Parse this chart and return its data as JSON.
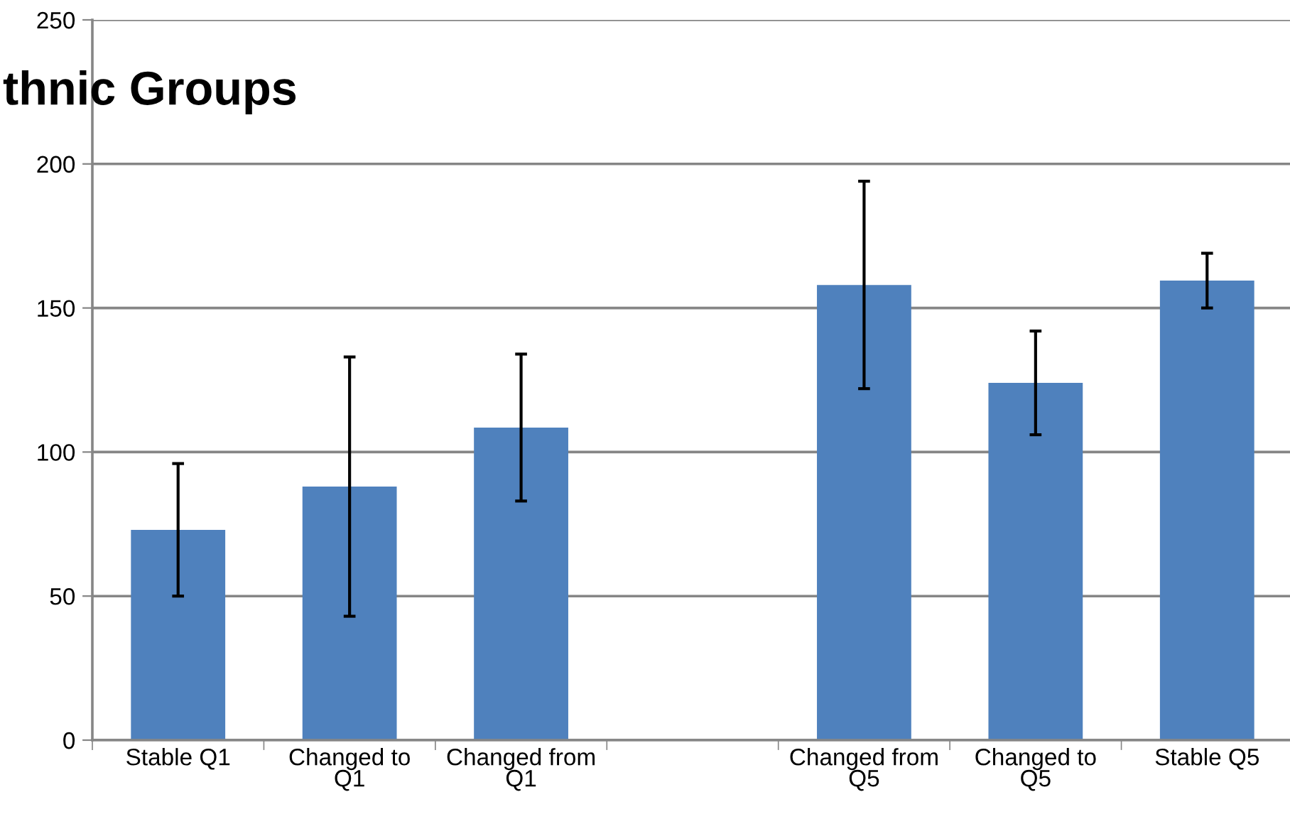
{
  "chart_data": {
    "type": "bar",
    "title": "thnic Groups",
    "categories": [
      "Stable Q1",
      "Changed to Q1",
      "Changed from Q1",
      null,
      "Changed from Q5",
      "Changed to Q5",
      "Stable Q5"
    ],
    "series": [
      {
        "color": "#4f81bd",
        "values": [
          73,
          88,
          108.5,
          null,
          158,
          124,
          159.5
        ],
        "errors": [
          [
            50,
            96
          ],
          [
            43,
            133
          ],
          [
            83,
            134
          ],
          null,
          [
            122,
            194
          ],
          [
            106,
            142
          ],
          [
            150,
            169
          ]
        ]
      }
    ],
    "ylim": [
      0,
      250
    ],
    "yticks": [
      0,
      50,
      100,
      150,
      200,
      250
    ],
    "grid": "y"
  }
}
